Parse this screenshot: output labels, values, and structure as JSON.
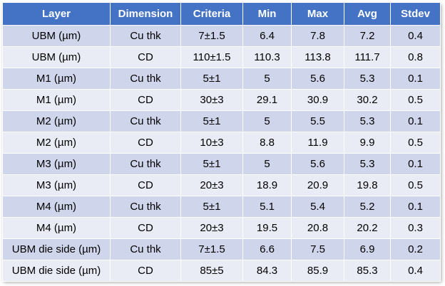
{
  "table": {
    "headers": [
      "Layer",
      "Dimension",
      "Criteria",
      "Min",
      "Max",
      "Avg",
      "Stdev"
    ],
    "rows": [
      [
        "UBM (µm)",
        "Cu thk",
        "7±1.5",
        "6.4",
        "7.8",
        "7.2",
        "0.4"
      ],
      [
        "UBM (µm)",
        "CD",
        "110±1.5",
        "110.3",
        "113.8",
        "111.7",
        "0.8"
      ],
      [
        "M1 (µm)",
        "Cu thk",
        "5±1",
        "5",
        "5.6",
        "5.3",
        "0.1"
      ],
      [
        "M1 (µm)",
        "CD",
        "30±3",
        "29.1",
        "30.9",
        "30.2",
        "0.5"
      ],
      [
        "M2 (µm)",
        "Cu thk",
        "5±1",
        "5",
        "5.5",
        "5.3",
        "0.1"
      ],
      [
        "M2 (µm)",
        "CD",
        "10±3",
        "8.8",
        "11.9",
        "9.9",
        "0.5"
      ],
      [
        "M3 (µm)",
        "Cu thk",
        "5±1",
        "5",
        "5.6",
        "5.3",
        "0.1"
      ],
      [
        "M3 (µm)",
        "CD",
        "20±3",
        "18.9",
        "20.9",
        "19.8",
        "0.5"
      ],
      [
        "M4 (µm)",
        "Cu thk",
        "5±1",
        "5.1",
        "5.4",
        "5.2",
        "0.1"
      ],
      [
        "M4 (µm)",
        "CD",
        "20±3",
        "19.5",
        "20.8",
        "20.2",
        "0.3"
      ],
      [
        "UBM die side (µm)",
        "Cu thk",
        "7±1.5",
        "6.6",
        "7.5",
        "6.9",
        "0.2"
      ],
      [
        "UBM die side (µm)",
        "CD",
        "85±5",
        "84.3",
        "85.9",
        "85.3",
        "0.4"
      ]
    ]
  },
  "colors": {
    "header_bg": "#4472c4",
    "row_band_dark": "#cfd5ea",
    "row_band_light": "#e9ebf5"
  }
}
